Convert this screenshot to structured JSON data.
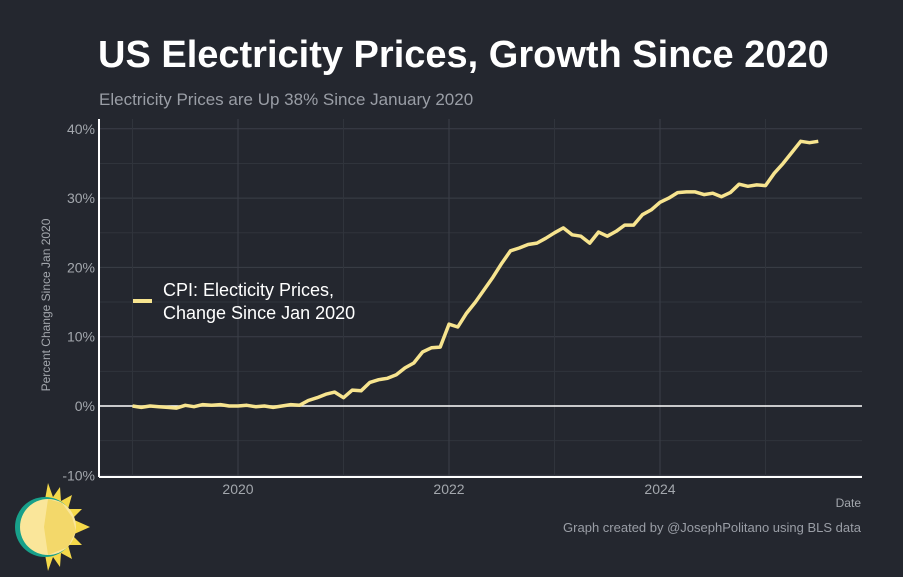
{
  "chart_data": {
    "type": "line",
    "title": "US Electricity Prices, Growth Since 2020",
    "subtitle": "Electricity Prices are Up 38% Since January 2020",
    "xlabel": "Date",
    "ylabel": "Percent Change Since Jan 2020",
    "caption": "Graph created by @JosephPolitano using BLS data",
    "ylim": [
      -10,
      40
    ],
    "xlim": [
      "2018-11",
      "2025-12"
    ],
    "yticks": [
      "-10%",
      "0%",
      "10%",
      "20%",
      "30%",
      "40%"
    ],
    "xticks": [
      "2020",
      "2022",
      "2024"
    ],
    "grid": true,
    "legend_position": "left",
    "colors": {
      "background": "#24272f",
      "line": "#f7e48f",
      "grid": "#3a3e47",
      "zero_line": "#ffffff"
    },
    "series": [
      {
        "name": "CPI: Electicity Prices, Change Since Jan 2020",
        "start": "2019-01",
        "frequency": "monthly",
        "values": [
          0,
          -0.2,
          0,
          -0.1,
          -0.2,
          -0.3,
          0.1,
          -0.1,
          0.2,
          0.1,
          0.2,
          0,
          0,
          0.1,
          -0.1,
          0,
          -0.2,
          0,
          0.2,
          0.1,
          0.8,
          1.2,
          1.7,
          2.0,
          1.2,
          2.3,
          2.2,
          3.4,
          3.8,
          4.0,
          4.5,
          5.5,
          6.2,
          7.8,
          8.4,
          8.5,
          11.8,
          11.4,
          13.4,
          15.0,
          16.8,
          18.6,
          20.6,
          22.4,
          22.8,
          23.3,
          23.5,
          24.2,
          25.0,
          25.7,
          24.7,
          24.5,
          23.5,
          25.1,
          24.5,
          25.2,
          26.1,
          26.1,
          27.6,
          28.3,
          29.4,
          30.0,
          30.8,
          30.9,
          30.9,
          30.5,
          30.7,
          30.2,
          30.8,
          32.0,
          31.7,
          31.9,
          31.8,
          33.6,
          35.0,
          36.6,
          38.2,
          38.0,
          38.2
        ]
      }
    ]
  }
}
